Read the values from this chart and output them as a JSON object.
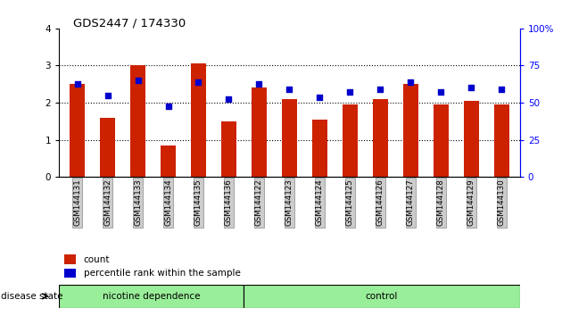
{
  "title": "GDS2447 / 174330",
  "samples": [
    "GSM144131",
    "GSM144132",
    "GSM144133",
    "GSM144134",
    "GSM144135",
    "GSM144136",
    "GSM144122",
    "GSM144123",
    "GSM144124",
    "GSM144125",
    "GSM144126",
    "GSM144127",
    "GSM144128",
    "GSM144129",
    "GSM144130"
  ],
  "bar_heights": [
    2.5,
    1.6,
    3.0,
    0.85,
    3.05,
    1.5,
    2.4,
    2.1,
    1.55,
    1.95,
    2.1,
    2.5,
    1.95,
    2.05,
    1.95
  ],
  "dot_values": [
    2.5,
    2.2,
    2.6,
    1.9,
    2.55,
    2.1,
    2.5,
    2.35,
    2.15,
    2.3,
    2.35,
    2.55,
    2.3,
    2.4,
    2.35
  ],
  "bar_color": "#cc2200",
  "dot_color": "#0000cc",
  "ylim_left": [
    0,
    4
  ],
  "ylim_right": [
    0,
    100
  ],
  "yticks_left": [
    0,
    1,
    2,
    3,
    4
  ],
  "yticks_right": [
    0,
    25,
    50,
    75,
    100
  ],
  "ytick_labels_right": [
    "0",
    "25",
    "50",
    "75",
    "100%"
  ],
  "n_nicotine": 6,
  "n_control": 9,
  "nicotine_label": "nicotine dependence",
  "control_label": "control",
  "disease_state_label": "disease state",
  "group_bg_color": "#99ee99",
  "tick_label_bg": "#cccccc",
  "tick_label_edge": "#888888",
  "legend_count_label": "count",
  "legend_percentile_label": "percentile rank within the sample",
  "bar_width": 0.5
}
